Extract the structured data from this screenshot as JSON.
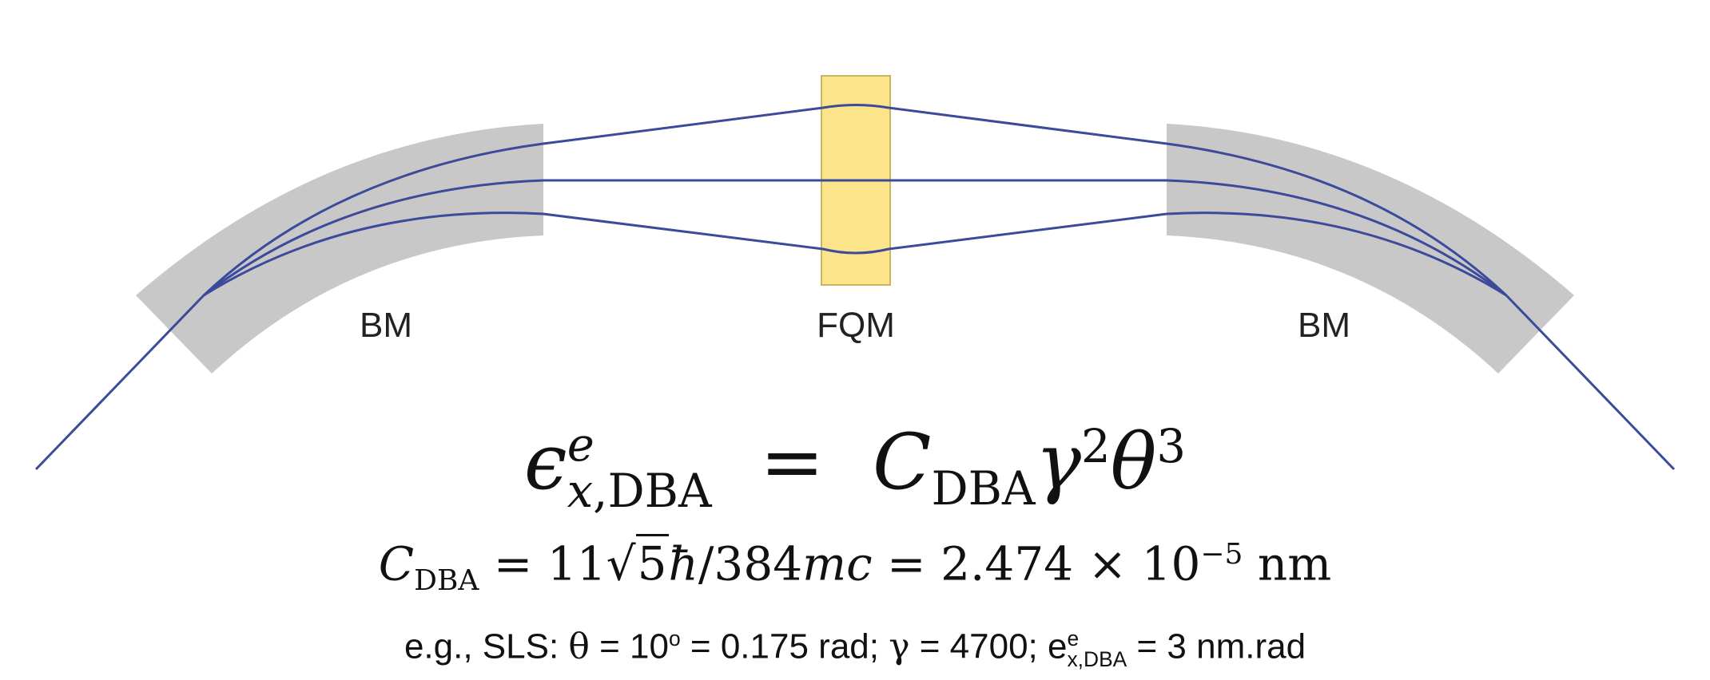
{
  "labels": {
    "bm_left": "BM",
    "fqm": "FQM",
    "bm_right": "BM"
  },
  "colors": {
    "bend_magnet": "#c8c8c8",
    "quadrupole_fill": "#fbe48a",
    "quadrupole_stroke": "#c9b460",
    "beam_trajectory": "#3b4a9a"
  },
  "equations": {
    "emittance": {
      "lhs_symbol": "ϵ",
      "lhs_sup": "e",
      "lhs_sub_var": "x",
      "lhs_sub_text": ",DBA",
      "equals": "=",
      "rhs_symbol": "C",
      "rhs_sub": "DBA",
      "gamma": "γ",
      "gamma_exp": "2",
      "theta": "θ",
      "theta_exp": "3"
    },
    "constant": {
      "symbol": "C",
      "sub": "DBA",
      "eq1": " = 11",
      "sqrt_arg": "5",
      "hbar": "ħ",
      "mid": "/384",
      "mc": "mc",
      "eq2": " = 2.474 × 10",
      "exp": "−5",
      "unit": " nm"
    },
    "example": {
      "prefix": "e.g., SLS: ",
      "theta": "θ",
      "theta_val": " = 10",
      "deg": "o",
      "rad_val": " = 0.175 rad; ",
      "gamma": "γ",
      "gamma_val": " = 4700; ",
      "e": "e",
      "e_sup": "e",
      "e_sub": "x,DBA",
      "e_val": " = 3 nm.rad"
    }
  }
}
